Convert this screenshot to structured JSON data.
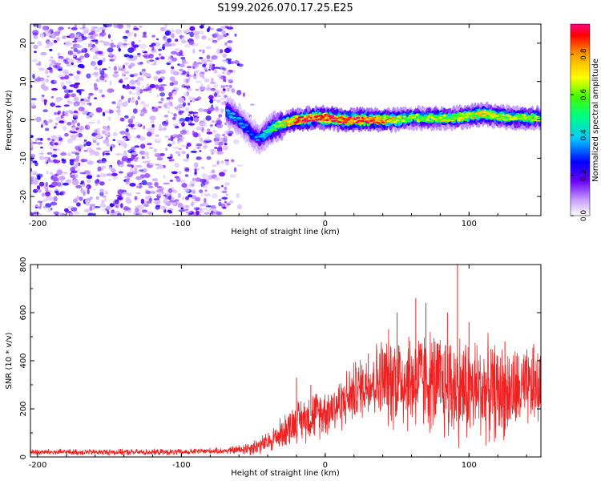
{
  "figure": {
    "title": "S199.2026.070.17.25.E25"
  },
  "chart_data": [
    {
      "type": "heatmap",
      "title": "S199.2026.070.17.25.E25",
      "xlabel": "Height of straight line (km)",
      "ylabel": "Frequency (Hz)",
      "xlim": [
        -205,
        150
      ],
      "ylim": [
        -25,
        25
      ],
      "xticks": [
        -200,
        -100,
        0,
        100
      ],
      "yticks": [
        -20,
        -10,
        0,
        10,
        20
      ],
      "grid": false,
      "colorbar": {
        "label": "Normalized spectral amplitude",
        "range": [
          0.0,
          0.95
        ],
        "ticks": [
          0.0,
          0.2,
          0.4,
          0.6,
          0.8
        ],
        "colormap": [
          "#ffffff",
          "#7a00ff",
          "#0000ff",
          "#00c8ff",
          "#00ff80",
          "#80ff00",
          "#ffff00",
          "#ffa000",
          "#ff0000",
          "#ff0080"
        ]
      },
      "noise_region_x": [
        -205,
        -65
      ],
      "ridge": {
        "x": [
          -68,
          -60,
          -55,
          -50,
          -45,
          -40,
          -35,
          -30,
          -25,
          -20,
          -15,
          -10,
          -5,
          0,
          5,
          10,
          20,
          30,
          40,
          50,
          60,
          70,
          80,
          90,
          100,
          110,
          120,
          130,
          140,
          150
        ],
        "y": [
          2,
          0,
          -2,
          -4,
          -5,
          -3,
          -2,
          -1,
          -0.5,
          0,
          0,
          0.5,
          0.5,
          0.5,
          0.5,
          0,
          0,
          0,
          0,
          0,
          0.5,
          0.5,
          0.5,
          0.5,
          1,
          1.5,
          1,
          0.5,
          0.5,
          0.5
        ],
        "amplitude": [
          0.4,
          0.35,
          0.3,
          0.3,
          0.35,
          0.45,
          0.55,
          0.65,
          0.75,
          0.85,
          0.85,
          0.85,
          0.9,
          0.92,
          0.92,
          0.9,
          0.9,
          0.9,
          0.8,
          0.7,
          0.6,
          0.6,
          0.65,
          0.65,
          0.7,
          0.7,
          0.65,
          0.65,
          0.65,
          0.6
        ]
      }
    },
    {
      "type": "line",
      "xlabel": "Height of straight line (km)",
      "ylabel": "SNR (10 * v/v)",
      "xlim": [
        -205,
        150
      ],
      "ylim": [
        0,
        800
      ],
      "xticks": [
        -200,
        -100,
        0,
        100
      ],
      "yticks": [
        0,
        200,
        400,
        600,
        800
      ],
      "grid": false,
      "color": "#ee2222",
      "series": [
        {
          "x": [
            -205,
            -180,
            -160,
            -140,
            -120,
            -100,
            -80,
            -70,
            -60,
            -50,
            -40,
            -30,
            -20,
            -10,
            0,
            10,
            20,
            30,
            40,
            50,
            60,
            70,
            80,
            90,
            100,
            110,
            120,
            130,
            140,
            150
          ],
          "mean": [
            20,
            20,
            20,
            20,
            20,
            20,
            25,
            25,
            30,
            40,
            60,
            100,
            150,
            170,
            190,
            220,
            270,
            310,
            320,
            330,
            320,
            320,
            300,
            290,
            280,
            280,
            270,
            270,
            280,
            290
          ],
          "spread": [
            15,
            15,
            15,
            15,
            15,
            15,
            15,
            15,
            25,
            40,
            50,
            80,
            100,
            120,
            120,
            130,
            150,
            160,
            220,
            250,
            260,
            250,
            260,
            280,
            260,
            250,
            230,
            220,
            200,
            180
          ]
        }
      ],
      "spikes": [
        [
          -20,
          330
        ],
        [
          -10,
          300
        ],
        [
          30,
          430
        ],
        [
          50,
          600
        ],
        [
          63,
          660
        ],
        [
          70,
          640
        ],
        [
          85,
          600
        ],
        [
          92,
          800
        ],
        [
          100,
          560
        ],
        [
          125,
          480
        ],
        [
          145,
          470
        ]
      ]
    }
  ]
}
